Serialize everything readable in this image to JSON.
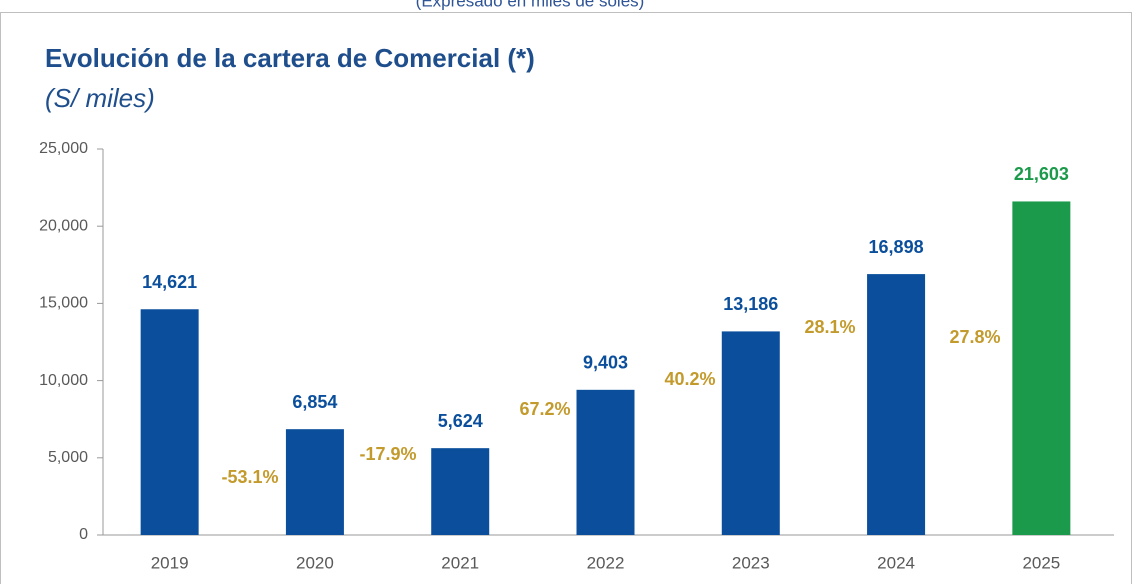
{
  "header": {
    "note": "(Expresado en miles de soles)"
  },
  "chart_data": {
    "type": "bar",
    "title": "Evolución de la cartera de Comercial (*)",
    "subtitle": "(S/ miles)",
    "categories": [
      "2019",
      "2020",
      "2021",
      "2022",
      "2023",
      "2024",
      "2025"
    ],
    "values": [
      14621,
      6854,
      5624,
      9403,
      13186,
      16898,
      21603
    ],
    "value_labels": [
      "14,621",
      "6,854",
      "5,624",
      "9,403",
      "13,186",
      "16,898",
      "21,603"
    ],
    "colors": [
      "#0b4f9c",
      "#0b4f9c",
      "#0b4f9c",
      "#0b4f9c",
      "#0b4f9c",
      "#0b4f9c",
      "#1b9a4b"
    ],
    "annotations": [
      "-53.1%",
      "-17.9%",
      "67.2%",
      "40.2%",
      "28.1%",
      "27.8%"
    ],
    "ylim": [
      0,
      25000
    ],
    "yticks": [
      0,
      {
        "value": 5000,
        "label": "5,000"
      },
      {
        "value": 10000,
        "label": "10,000"
      },
      {
        "value": 15000,
        "label": "15,000"
      },
      {
        "value": 20000,
        "label": "20,000"
      },
      {
        "value": 25000,
        "label": "25,000"
      }
    ],
    "grid": false
  }
}
